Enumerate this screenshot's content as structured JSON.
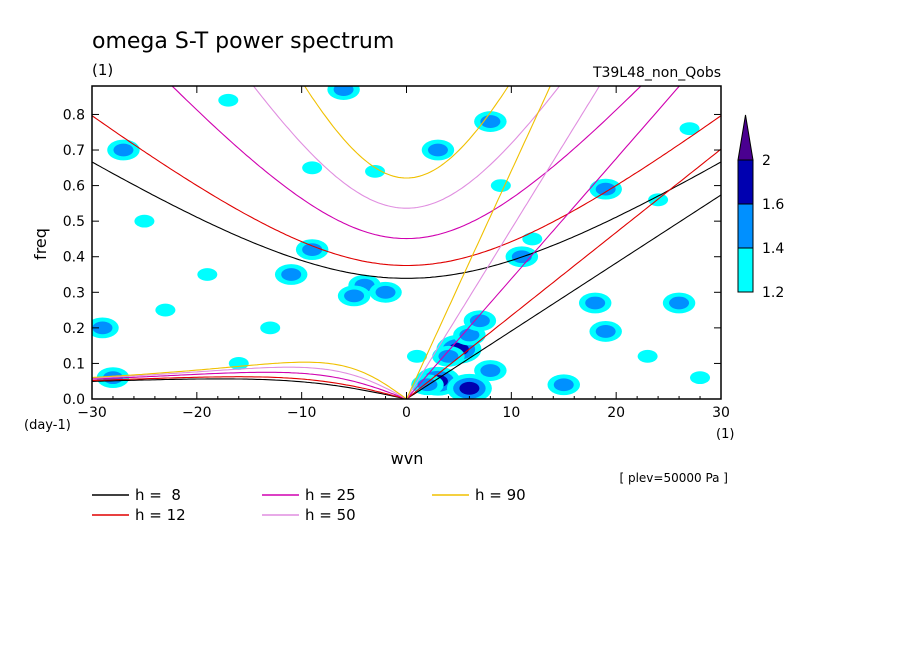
{
  "chart_data": {
    "type": "heatmap",
    "title": "omega S-T power spectrum",
    "unit_label": "(1)",
    "experiment": "T39L48_non_Qobs",
    "xlabel": "wvn",
    "x_unit": "(1)",
    "ylabel": "freq",
    "y_unit": "(day-1)",
    "xlim": [
      -30,
      30
    ],
    "ylim": [
      0,
      0.88
    ],
    "x_ticks": [
      -30,
      -20,
      -10,
      0,
      10,
      20,
      30
    ],
    "x_tick_labels": [
      "−30",
      "−20",
      "−10",
      "0",
      "10",
      "20",
      "30"
    ],
    "y_ticks": [
      0,
      0.1,
      0.2,
      0.3,
      0.4,
      0.5,
      0.6,
      0.7,
      0.8
    ],
    "y_tick_labels": [
      "0.0",
      "0.1",
      "0.2",
      "0.3",
      "0.4",
      "0.5",
      "0.6",
      "0.7",
      "0.8"
    ],
    "plev_note": "[ plev=50000 Pa ]",
    "colorbar": {
      "levels": [
        1.2,
        1.4,
        1.6,
        2
      ],
      "level_labels": [
        "1.2",
        "1.4",
        "1.6",
        "2"
      ],
      "colors": [
        "#00ffff",
        "#0090ff",
        "#0000b0",
        "#4a0090"
      ]
    },
    "dispersion_curves": [
      {
        "name": "h =  8",
        "h": 8,
        "color": "#000000"
      },
      {
        "name": "h = 12",
        "h": 12,
        "color": "#e00000"
      },
      {
        "name": "h = 25",
        "h": 25,
        "color": "#d000b0"
      },
      {
        "name": "h = 50",
        "h": 50,
        "color": "#e08ee0"
      },
      {
        "name": "h = 90",
        "h": 90,
        "color": "#f0c000"
      }
    ],
    "power_blobs": [
      {
        "k": 5,
        "f": 0.14,
        "level": 3
      },
      {
        "k": 4,
        "f": 0.12,
        "level": 2
      },
      {
        "k": 6,
        "f": 0.18,
        "level": 2
      },
      {
        "k": 3,
        "f": 0.05,
        "level": 3
      },
      {
        "k": 2,
        "f": 0.04,
        "level": 2
      },
      {
        "k": 7,
        "f": 0.22,
        "level": 2
      },
      {
        "k": 8,
        "f": 0.08,
        "level": 2
      },
      {
        "k": 6,
        "f": 0.03,
        "level": 3
      },
      {
        "k": 11,
        "f": 0.4,
        "level": 2
      },
      {
        "k": 12,
        "f": 0.45,
        "level": 1
      },
      {
        "k": -4,
        "f": 0.32,
        "level": 2
      },
      {
        "k": -2,
        "f": 0.3,
        "level": 2
      },
      {
        "k": -5,
        "f": 0.29,
        "level": 2
      },
      {
        "k": -9,
        "f": 0.42,
        "level": 2
      },
      {
        "k": -11,
        "f": 0.35,
        "level": 2
      },
      {
        "k": -27,
        "f": 0.7,
        "level": 2
      },
      {
        "k": -29,
        "f": 0.2,
        "level": 2
      },
      {
        "k": -28,
        "f": 0.06,
        "level": 2
      },
      {
        "k": 15,
        "f": 0.04,
        "level": 2
      },
      {
        "k": 18,
        "f": 0.27,
        "level": 2
      },
      {
        "k": 26,
        "f": 0.27,
        "level": 2
      },
      {
        "k": 19,
        "f": 0.59,
        "level": 2
      },
      {
        "k": 8,
        "f": 0.78,
        "level": 2
      },
      {
        "k": -6,
        "f": 0.87,
        "level": 2
      },
      {
        "k": 3,
        "f": 0.7,
        "level": 2
      },
      {
        "k": 19,
        "f": 0.19,
        "level": 2
      },
      {
        "k": -19,
        "f": 0.35,
        "level": 1
      },
      {
        "k": -23,
        "f": 0.25,
        "level": 1
      },
      {
        "k": -13,
        "f": 0.2,
        "level": 1
      },
      {
        "k": 24,
        "f": 0.56,
        "level": 1
      },
      {
        "k": 9,
        "f": 0.6,
        "level": 1
      },
      {
        "k": -3,
        "f": 0.64,
        "level": 1
      },
      {
        "k": -25,
        "f": 0.5,
        "level": 1
      },
      {
        "k": 23,
        "f": 0.12,
        "level": 1
      },
      {
        "k": 28,
        "f": 0.06,
        "level": 1
      },
      {
        "k": -16,
        "f": 0.1,
        "level": 1
      },
      {
        "k": -17,
        "f": 0.84,
        "level": 1
      },
      {
        "k": 27,
        "f": 0.76,
        "level": 1
      },
      {
        "k": 1,
        "f": 0.12,
        "level": 1
      },
      {
        "k": -9,
        "f": 0.65,
        "level": 1
      }
    ]
  }
}
